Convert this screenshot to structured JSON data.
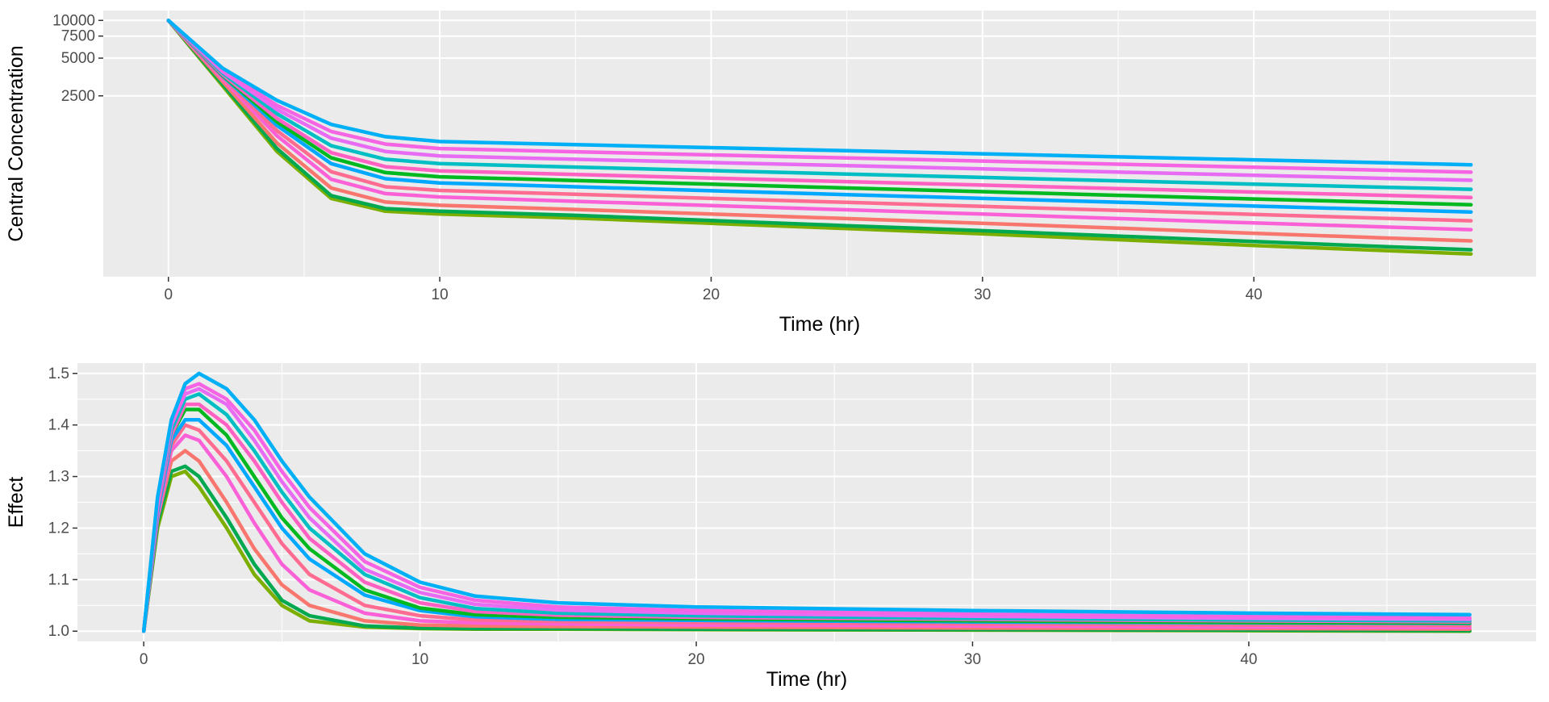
{
  "figure": {
    "background": "#ffffff",
    "panel_background": "#ebebeb",
    "grid_color": "#ffffff"
  },
  "chart_data": [
    {
      "type": "line",
      "id": "concentration",
      "title": "",
      "xlabel": "Time (hr)",
      "ylabel": "Central Concentration",
      "y_scale": "log",
      "xlim": [
        -2.4,
        50.4
      ],
      "ylim": [
        90,
        12000
      ],
      "x_ticks": [
        0,
        10,
        20,
        30,
        40
      ],
      "x_tick_labels": [
        "0",
        "10",
        "20",
        "30",
        "40"
      ],
      "y_ticks": [
        10000,
        7500,
        5000,
        2500
      ],
      "y_tick_labels": [
        "10000",
        "7500",
        "5000",
        "2500"
      ],
      "grid": true,
      "legend": "none",
      "x": [
        0,
        2,
        4,
        6,
        8,
        10,
        15,
        20,
        25,
        30,
        35,
        40,
        45,
        48
      ],
      "series": [
        {
          "color": "#7cae00",
          "values": [
            10000,
            3000,
            900,
            380,
            300,
            285,
            265,
            240,
            218,
            198,
            178,
            160,
            145,
            137
          ]
        },
        {
          "color": "#00a84f",
          "values": [
            10000,
            3100,
            950,
            400,
            315,
            300,
            278,
            253,
            230,
            210,
            190,
            172,
            156,
            148
          ]
        },
        {
          "color": "#f8766d",
          "values": [
            10000,
            3250,
            1050,
            460,
            355,
            335,
            310,
            285,
            262,
            240,
            220,
            200,
            183,
            174
          ]
        },
        {
          "color": "#fb61d7",
          "values": [
            10000,
            3400,
            1200,
            540,
            415,
            390,
            360,
            333,
            308,
            285,
            262,
            242,
            224,
            214
          ]
        },
        {
          "color": "#ff6c91",
          "values": [
            10000,
            3500,
            1320,
            620,
            470,
            440,
            410,
            380,
            353,
            328,
            305,
            283,
            263,
            252
          ]
        },
        {
          "color": "#00a9ff",
          "values": [
            10000,
            3600,
            1450,
            720,
            545,
            505,
            470,
            437,
            407,
            380,
            354,
            330,
            308,
            296
          ]
        },
        {
          "color": "#00b81f",
          "values": [
            10000,
            3650,
            1550,
            800,
            610,
            565,
            528,
            493,
            460,
            430,
            402,
            376,
            352,
            338
          ]
        },
        {
          "color": "#ff61c3",
          "values": [
            10000,
            3700,
            1650,
            880,
            680,
            630,
            590,
            552,
            517,
            485,
            455,
            427,
            401,
            386
          ]
        },
        {
          "color": "#00bfc4",
          "values": [
            10000,
            3800,
            1800,
            1000,
            780,
            720,
            675,
            633,
            594,
            558,
            525,
            494,
            465,
            449
          ]
        },
        {
          "color": "#e76bf3",
          "values": [
            10000,
            3900,
            1950,
            1150,
            900,
            830,
            780,
            735,
            693,
            653,
            616,
            581,
            548,
            530
          ]
        },
        {
          "color": "#f564e3",
          "values": [
            10000,
            4000,
            2100,
            1300,
            1030,
            950,
            895,
            845,
            798,
            754,
            712,
            673,
            636,
            615
          ]
        },
        {
          "color": "#00b0f6",
          "values": [
            10000,
            4150,
            2300,
            1480,
            1180,
            1080,
            1020,
            965,
            912,
            862,
            815,
            771,
            729,
            705
          ]
        }
      ]
    },
    {
      "type": "line",
      "id": "effect",
      "title": "",
      "xlabel": "Time (hr)",
      "ylabel": "Effect",
      "xlim": [
        -2.4,
        50.4
      ],
      "ylim": [
        0.98,
        1.52
      ],
      "x_ticks": [
        0,
        10,
        20,
        30,
        40
      ],
      "x_tick_labels": [
        "0",
        "10",
        "20",
        "30",
        "40"
      ],
      "y_ticks": [
        1.0,
        1.1,
        1.2,
        1.3,
        1.4,
        1.5
      ],
      "y_tick_labels": [
        "1.0",
        "1.1",
        "1.2",
        "1.3",
        "1.4",
        "1.5"
      ],
      "grid": true,
      "legend": "none",
      "x": [
        0,
        0.5,
        1,
        1.5,
        2,
        3,
        4,
        5,
        6,
        8,
        10,
        12,
        15,
        20,
        30,
        40,
        48
      ],
      "series": [
        {
          "color": "#7cae00",
          "values": [
            1.0,
            1.2,
            1.3,
            1.31,
            1.28,
            1.2,
            1.11,
            1.05,
            1.02,
            1.008,
            1.005,
            1.004,
            1.004,
            1.003,
            1.002,
            1.001,
            1.0
          ]
        },
        {
          "color": "#00a84f",
          "values": [
            1.0,
            1.21,
            1.31,
            1.32,
            1.3,
            1.22,
            1.13,
            1.06,
            1.03,
            1.01,
            1.006,
            1.005,
            1.005,
            1.004,
            1.003,
            1.002,
            1.001
          ]
        },
        {
          "color": "#f8766d",
          "values": [
            1.0,
            1.22,
            1.33,
            1.35,
            1.33,
            1.25,
            1.16,
            1.09,
            1.05,
            1.02,
            1.012,
            1.01,
            1.009,
            1.008,
            1.006,
            1.005,
            1.004
          ]
        },
        {
          "color": "#fb61d7",
          "values": [
            1.0,
            1.22,
            1.35,
            1.38,
            1.37,
            1.3,
            1.21,
            1.13,
            1.08,
            1.035,
            1.02,
            1.016,
            1.014,
            1.012,
            1.01,
            1.008,
            1.007
          ]
        },
        {
          "color": "#ff6c91",
          "values": [
            1.0,
            1.23,
            1.36,
            1.4,
            1.39,
            1.33,
            1.25,
            1.17,
            1.11,
            1.05,
            1.03,
            1.022,
            1.019,
            1.017,
            1.014,
            1.012,
            1.011
          ]
        },
        {
          "color": "#00a9ff",
          "values": [
            1.0,
            1.23,
            1.37,
            1.41,
            1.41,
            1.36,
            1.28,
            1.2,
            1.14,
            1.07,
            1.04,
            1.028,
            1.023,
            1.021,
            1.018,
            1.016,
            1.015
          ]
        },
        {
          "color": "#00b81f",
          "values": [
            1.0,
            1.24,
            1.38,
            1.43,
            1.43,
            1.38,
            1.3,
            1.22,
            1.16,
            1.08,
            1.045,
            1.032,
            1.027,
            1.024,
            1.02,
            1.017,
            1.016
          ]
        },
        {
          "color": "#ff61c3",
          "values": [
            1.0,
            1.24,
            1.38,
            1.44,
            1.44,
            1.4,
            1.33,
            1.25,
            1.18,
            1.095,
            1.055,
            1.038,
            1.031,
            1.027,
            1.023,
            1.02,
            1.018
          ]
        },
        {
          "color": "#00bfc4",
          "values": [
            1.0,
            1.25,
            1.39,
            1.45,
            1.46,
            1.42,
            1.35,
            1.27,
            1.2,
            1.11,
            1.065,
            1.044,
            1.035,
            1.03,
            1.025,
            1.022,
            1.02
          ]
        },
        {
          "color": "#e76bf3",
          "values": [
            1.0,
            1.25,
            1.4,
            1.46,
            1.47,
            1.44,
            1.37,
            1.29,
            1.22,
            1.12,
            1.075,
            1.052,
            1.041,
            1.035,
            1.029,
            1.025,
            1.023
          ]
        },
        {
          "color": "#f564e3",
          "values": [
            1.0,
            1.25,
            1.4,
            1.47,
            1.48,
            1.45,
            1.39,
            1.31,
            1.24,
            1.135,
            1.085,
            1.06,
            1.047,
            1.04,
            1.033,
            1.028,
            1.026
          ]
        },
        {
          "color": "#00b0f6",
          "values": [
            1.0,
            1.26,
            1.41,
            1.48,
            1.5,
            1.47,
            1.41,
            1.33,
            1.26,
            1.15,
            1.095,
            1.068,
            1.055,
            1.047,
            1.04,
            1.035,
            1.032
          ]
        }
      ]
    }
  ]
}
